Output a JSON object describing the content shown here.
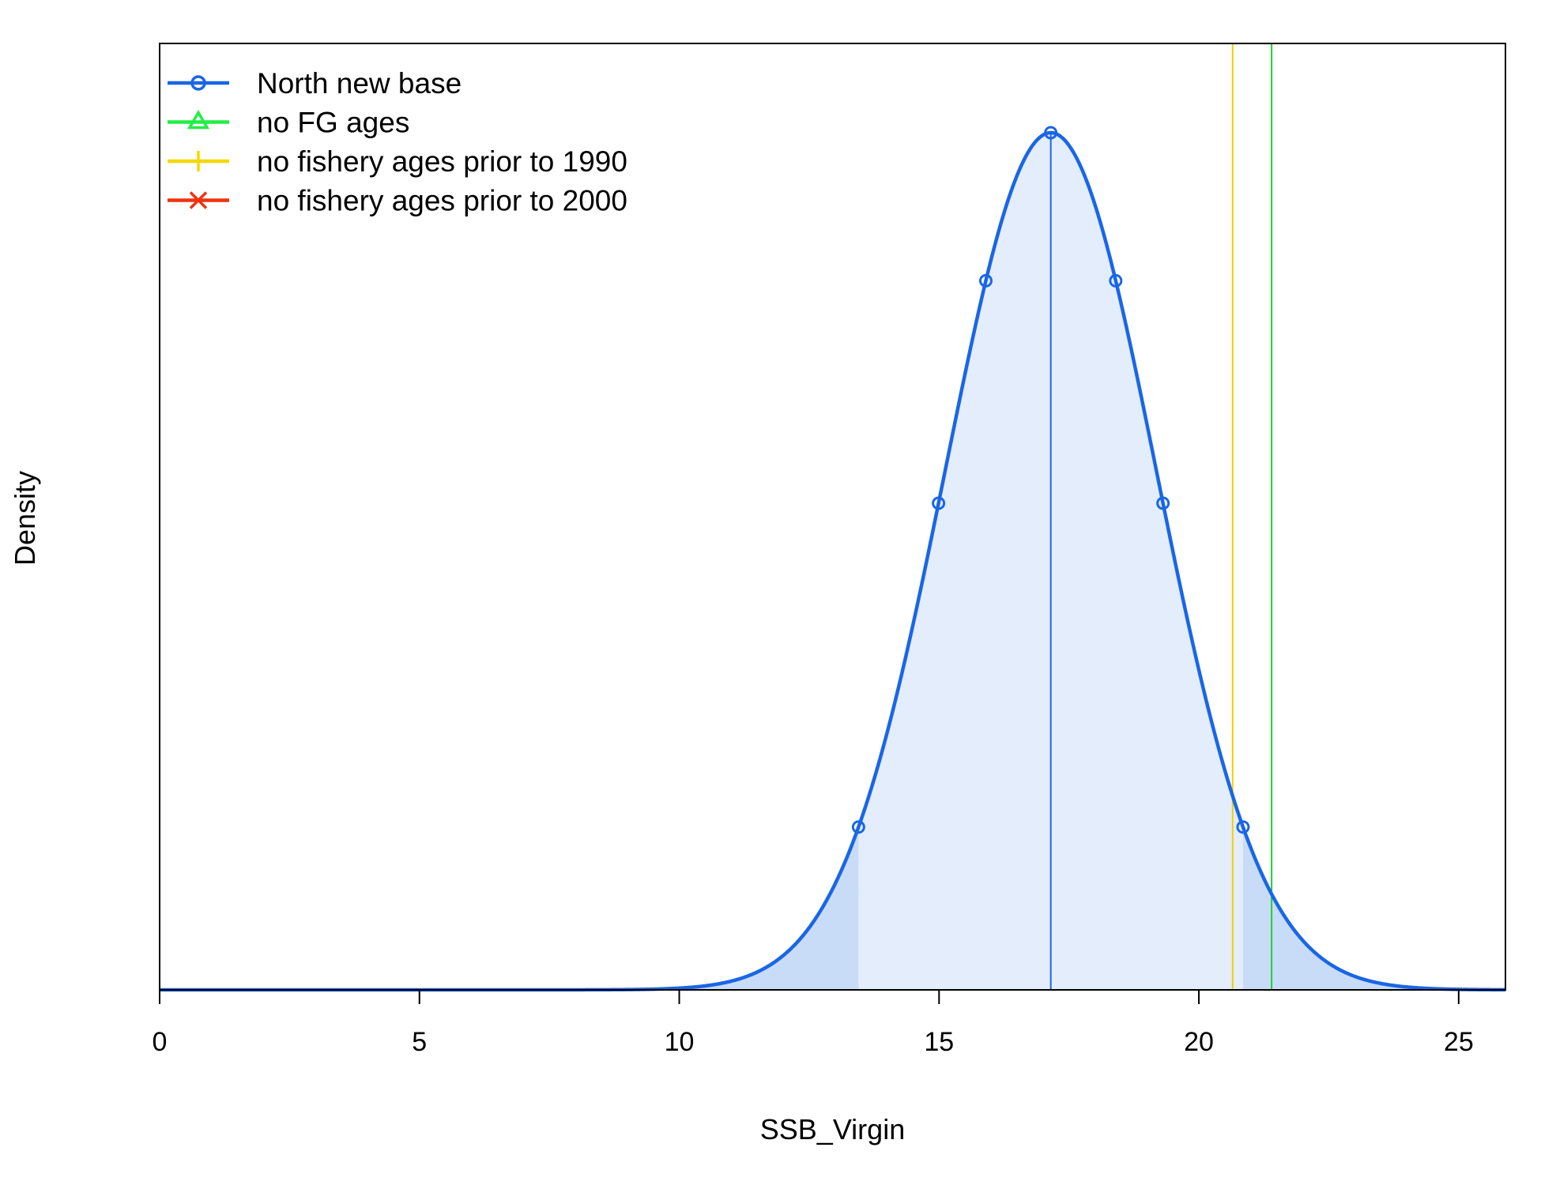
{
  "chart_data": {
    "type": "area",
    "title": "",
    "xlabel": "SSB_Virgin",
    "ylabel": "Density",
    "xlim": [
      0,
      25.9
    ],
    "x_ticks": [
      0,
      5,
      10,
      15,
      20,
      25
    ],
    "y_ticks_shown": false,
    "legend_position": "top-left",
    "distribution": {
      "series": "North new base",
      "shape": "normal",
      "mean": 17.15,
      "sd": 2.03,
      "interval_95": [
        13.45,
        20.85
      ],
      "curve_markers_x": [
        13.45,
        14.99,
        15.9,
        17.15,
        18.4,
        19.31,
        20.85
      ],
      "color": "#1a66e6",
      "fill_inner": "#e3edfc",
      "fill_tails": "#c9dcf7"
    },
    "point_estimates": [
      {
        "series": "North new base",
        "x": 17.15,
        "color": "#1a66e6"
      },
      {
        "series": "no FG ages",
        "x": 21.4,
        "color": "#22cc33"
      },
      {
        "series": "no fishery ages prior to 1990",
        "x": 20.65,
        "color": "#f0d000"
      }
    ],
    "series": [
      {
        "name": "North new base",
        "color": "#1a66e6",
        "marker": "circle"
      },
      {
        "name": "no FG ages",
        "color": "#22ee44",
        "marker": "triangle"
      },
      {
        "name": "no fishery ages prior to 1990",
        "color": "#f5d800",
        "marker": "plus"
      },
      {
        "name": "no fishery ages prior to 2000",
        "color": "#ee3311",
        "marker": "cross"
      }
    ]
  }
}
